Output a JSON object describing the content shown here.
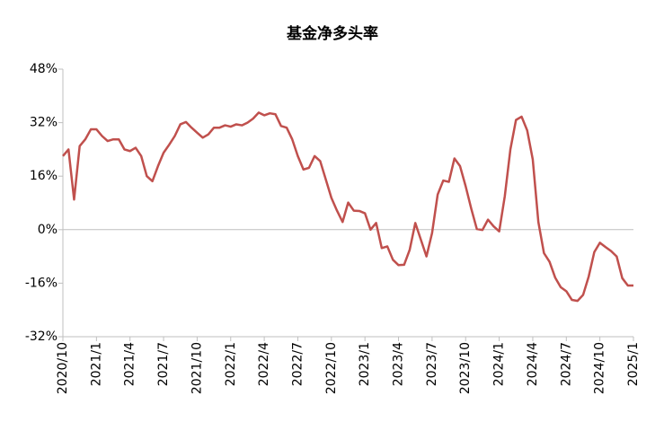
{
  "chart_data": {
    "type": "line",
    "title": "基金净多头率",
    "categories": [
      "2020/10",
      null,
      null,
      null,
      null,
      null,
      "2021/1",
      null,
      null,
      null,
      null,
      null,
      "2021/4",
      null,
      null,
      null,
      null,
      null,
      "2021/7",
      null,
      null,
      null,
      null,
      null,
      "2021/10",
      null,
      null,
      null,
      null,
      null,
      "2022/1",
      null,
      null,
      null,
      null,
      null,
      "2022/4",
      null,
      null,
      null,
      null,
      null,
      "2022/7",
      null,
      null,
      null,
      null,
      null,
      "2022/10",
      null,
      null,
      null,
      null,
      null,
      "2023/1",
      null,
      null,
      null,
      null,
      null,
      "2023/4",
      null,
      null,
      null,
      null,
      null,
      "2023/7",
      null,
      null,
      null,
      null,
      null,
      "2023/10",
      null,
      null,
      null,
      null,
      null,
      "2024/1",
      null,
      null,
      null,
      null,
      null,
      "2024/4",
      null,
      null,
      null,
      null,
      null,
      "2024/7",
      null,
      null,
      null,
      null,
      null,
      "2024/10",
      null,
      null,
      null,
      null,
      null,
      "2025/1"
    ],
    "series": [
      {
        "color": "#c0504d",
        "values": [
          22,
          24,
          9,
          25,
          27,
          30,
          30,
          28,
          26.5,
          27,
          27,
          24,
          23.5,
          24.5,
          22,
          16,
          14.5,
          19,
          23,
          25.4,
          28,
          31.5,
          32.2,
          30.5,
          29,
          27.5,
          28.5,
          30.5,
          30.5,
          31.2,
          30.8,
          31.5,
          31.2,
          32,
          33.2,
          35,
          34.2,
          34.8,
          34.5,
          31,
          30.5,
          27,
          22,
          18,
          18.5,
          22,
          20.5,
          15,
          9.5,
          5.7,
          2.3,
          8.1,
          5.7,
          5.6,
          4.9,
          0,
          2,
          -5.5,
          -5,
          -9,
          -10.6,
          -10.5,
          -6,
          2,
          -3,
          -8,
          -1,
          10.5,
          14.7,
          14.3,
          21.3,
          19,
          13,
          6.3,
          0.2,
          -0.1,
          3,
          1,
          -0.5,
          10,
          24,
          32.8,
          33.8,
          29.7,
          21,
          2.3,
          -7,
          -9.6,
          -14.3,
          -17.2,
          -18.4,
          -21,
          -21.3,
          -19.5,
          -14,
          -6.7,
          -3.9,
          -5.2,
          -6.4,
          -8,
          -14.5,
          -16.7,
          -16.7
        ]
      }
    ],
    "ylim": [
      -32,
      48
    ],
    "yticks": [
      {
        "value": -32,
        "label": "-32%"
      },
      {
        "value": -16,
        "label": "-16%"
      },
      {
        "value": 0,
        "label": "0%"
      },
      {
        "value": 16,
        "label": "16%"
      },
      {
        "value": 32,
        "label": "32%"
      },
      {
        "value": 48,
        "label": "48%"
      }
    ],
    "grid": false
  }
}
